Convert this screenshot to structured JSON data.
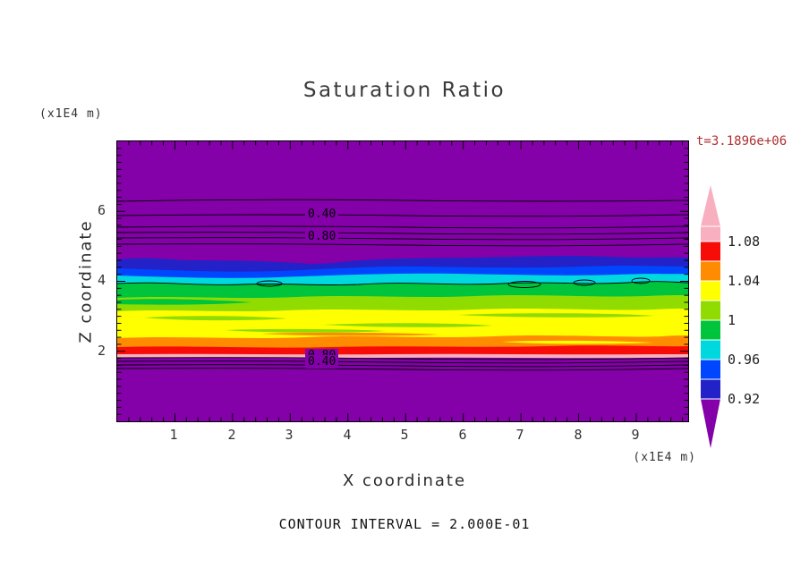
{
  "title": "Saturation Ratio",
  "time_label": "t=3.1896e+06",
  "axes": {
    "x_label": "X coordinate",
    "y_label": "Z coordinate",
    "x_unit": "(x1E4 m)",
    "y_unit": "(x1E4 m)",
    "x_ticks": [
      "1",
      "2",
      "3",
      "4",
      "5",
      "6",
      "7",
      "8",
      "9"
    ],
    "y_ticks": [
      "6",
      "4",
      "2"
    ]
  },
  "footer": {
    "contour_interval_text": "CONTOUR INTERVAL = 2.000E-01"
  },
  "contour_labels": {
    "upper_040": "0.40",
    "upper_080": "0.80",
    "lower_080": "0.80",
    "lower_040": "0.40"
  },
  "colorbar": {
    "labels": [
      "1.08",
      "1.04",
      "1",
      "0.96",
      "0.92"
    ]
  },
  "palette": {
    "purple": "#8400a8",
    "navy": "#2222c8",
    "blue": "#0046ff",
    "cyan": "#00d8e0",
    "green": "#00c43c",
    "lime": "#90dc00",
    "yellow": "#ffff00",
    "orange": "#ff8c00",
    "red": "#f80c08",
    "pink": "#f8b0c0"
  },
  "chart_data": {
    "type": "heatmap",
    "title": "Saturation Ratio",
    "xlabel": "X coordinate",
    "ylabel": "Z coordinate",
    "x_unit": "(x1E4 m)",
    "y_unit": "(x1E4 m)",
    "time_annotation": "t=3.1896e+06",
    "contour_interval": 0.2,
    "contour_interval_label": "CONTOUR INTERVAL = 2.000E-01",
    "xlim": [
      0,
      9.9
    ],
    "ylim": [
      0,
      8
    ],
    "x_ticks": [
      1,
      2,
      3,
      4,
      5,
      6,
      7,
      8,
      9
    ],
    "y_ticks": [
      2,
      4,
      6
    ],
    "grid": false,
    "legend_position": "colorbar-right",
    "colorbar_labeled_levels": [
      1.08,
      1.04,
      1.0,
      0.96,
      0.92
    ],
    "colorbar_colors_top_to_bottom": [
      "pink",
      "red",
      "orange",
      "yellow",
      "lime",
      "green",
      "cyan",
      "blue",
      "navy",
      "purple"
    ],
    "colorbar_value_per_band": 0.02,
    "contour_line_labels_top_to_bottom": [
      0.4,
      0.8,
      0.8,
      0.4
    ],
    "horizontal_layers_top_to_bottom": [
      {
        "color": "purple",
        "z_range_x1e4_m": [
          4.75,
          8.0
        ]
      },
      {
        "color": "navy",
        "z_range_x1e4_m": [
          4.4,
          4.75
        ]
      },
      {
        "color": "blue",
        "z_range_x1e4_m": [
          4.2,
          4.4
        ]
      },
      {
        "color": "cyan",
        "z_range_x1e4_m": [
          3.95,
          4.2
        ]
      },
      {
        "color": "green",
        "z_range_x1e4_m": [
          3.55,
          3.95
        ]
      },
      {
        "color": "lime",
        "z_range_x1e4_m": [
          3.15,
          3.55
        ]
      },
      {
        "color": "yellow",
        "z_range_x1e4_m": [
          2.4,
          3.15
        ]
      },
      {
        "color": "orange",
        "z_range_x1e4_m": [
          2.15,
          2.4
        ]
      },
      {
        "color": "red",
        "z_range_x1e4_m": [
          1.95,
          2.15
        ]
      },
      {
        "color": "pink",
        "z_range_x1e4_m": [
          1.85,
          1.95
        ]
      },
      {
        "color": "purple",
        "z_range_x1e4_m": [
          0.0,
          1.85
        ]
      }
    ]
  }
}
